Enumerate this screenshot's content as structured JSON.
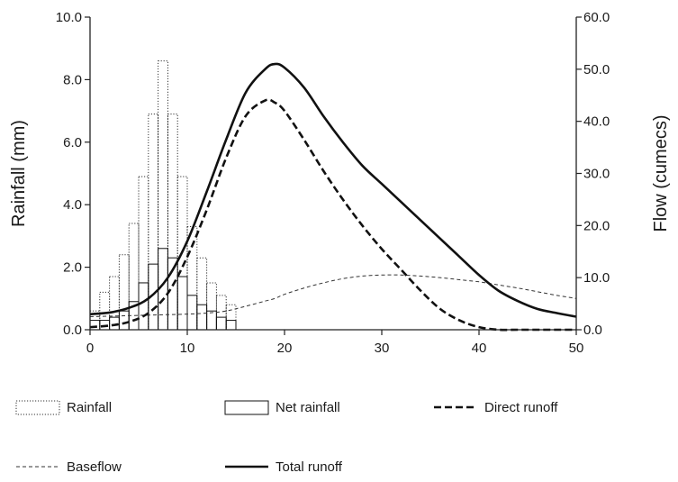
{
  "chart_data": {
    "type": "bar+line",
    "x": {
      "range": [
        0,
        50
      ],
      "ticks": [
        "0",
        "10",
        "20",
        "30",
        "40",
        "50"
      ]
    },
    "y_left": {
      "label": "Rainfall (mm)",
      "range": [
        0,
        10
      ],
      "ticks": [
        "0.0",
        "2.0",
        "4.0",
        "6.0",
        "8.0",
        "10.0"
      ]
    },
    "y_right": {
      "label": "Flow (cumecs)",
      "range": [
        0,
        60
      ],
      "ticks": [
        "0.0",
        "10.0",
        "20.0",
        "30.0",
        "40.0",
        "50.0",
        "60.0"
      ]
    },
    "bars": {
      "bin_edges": [
        0,
        1,
        2,
        3,
        4,
        5,
        6,
        7,
        8,
        9,
        10,
        11,
        12,
        13,
        14,
        15
      ],
      "rainfall": [
        0.6,
        1.2,
        1.7,
        2.4,
        3.4,
        4.9,
        6.9,
        8.6,
        6.9,
        4.9,
        3.3,
        2.3,
        1.5,
        1.1,
        0.8
      ],
      "net_rainfall": [
        0.3,
        0.3,
        0.4,
        0.6,
        0.9,
        1.5,
        2.1,
        2.6,
        2.3,
        1.7,
        1.1,
        0.8,
        0.6,
        0.4,
        0.3
      ]
    },
    "lines": {
      "x": [
        0,
        2,
        4,
        6,
        8,
        10,
        12,
        14,
        16,
        18,
        19,
        20,
        22,
        24,
        26,
        28,
        30,
        32,
        34,
        36,
        38,
        40,
        42,
        44,
        46,
        48,
        50
      ],
      "direct_runoff": [
        0.5,
        0.8,
        1.5,
        3.2,
        7.0,
        14.0,
        23.0,
        33.0,
        41.0,
        44.0,
        43.6,
        42.0,
        36.5,
        30.5,
        25.0,
        20.0,
        15.5,
        11.5,
        7.5,
        4.0,
        1.8,
        0.5,
        0.0,
        0.0,
        0.0,
        0.0,
        0.0
      ],
      "baseflow": [
        2.5,
        2.6,
        2.7,
        2.8,
        2.9,
        3.0,
        3.2,
        3.6,
        4.5,
        5.5,
        6.0,
        6.8,
        8.0,
        9.0,
        9.8,
        10.3,
        10.5,
        10.5,
        10.3,
        10.0,
        9.6,
        9.2,
        8.6,
        8.0,
        7.3,
        6.6,
        6.0
      ],
      "total_runoff": [
        3.0,
        3.3,
        4.2,
        6.0,
        10.0,
        17.0,
        26.5,
        36.5,
        45.5,
        50.0,
        51.0,
        50.3,
        46.5,
        41.0,
        36.0,
        31.5,
        28.0,
        24.5,
        21.0,
        17.5,
        14.0,
        10.5,
        7.5,
        5.5,
        4.0,
        3.2,
        2.5
      ]
    },
    "legend": {
      "placement": "bottom",
      "items": [
        {
          "key": "rainfall",
          "label": "Rainfall",
          "symbol": "dotted-box"
        },
        {
          "key": "net_rainfall",
          "label": "Net rainfall",
          "symbol": "solid-box"
        },
        {
          "key": "direct_runoff",
          "label": "Direct runoff",
          "symbol": "dashed-line"
        },
        {
          "key": "baseflow",
          "label": "Baseflow",
          "symbol": "thin-dashed-line"
        },
        {
          "key": "total_runoff",
          "label": "Total runoff",
          "symbol": "solid-line"
        }
      ]
    },
    "grid": false
  }
}
